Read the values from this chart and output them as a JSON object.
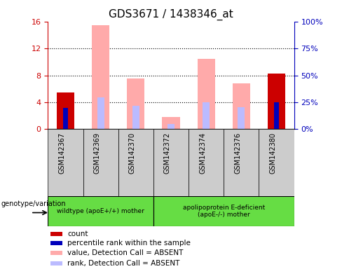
{
  "title": "GDS3671 / 1438346_at",
  "samples": [
    "GSM142367",
    "GSM142369",
    "GSM142370",
    "GSM142372",
    "GSM142374",
    "GSM142376",
    "GSM142380"
  ],
  "count_values": [
    5.5,
    null,
    null,
    null,
    null,
    null,
    8.3
  ],
  "rank_values": [
    3.2,
    null,
    null,
    null,
    null,
    null,
    4.0
  ],
  "absent_value_bars": [
    null,
    15.5,
    7.5,
    1.8,
    10.5,
    6.8,
    null
  ],
  "absent_rank_bars": [
    null,
    4.7,
    3.5,
    0.8,
    4.0,
    3.3,
    null
  ],
  "ylim": [
    0,
    16
  ],
  "y2lim": [
    0,
    100
  ],
  "yticks": [
    0,
    4,
    8,
    12,
    16
  ],
  "y2ticks": [
    0,
    25,
    50,
    75,
    100
  ],
  "color_red": "#cc0000",
  "color_blue": "#0000bb",
  "color_pink": "#ffaaaa",
  "color_lightblue": "#bbbbff",
  "color_green": "#66dd44",
  "color_gray": "#cccccc",
  "wildtype_label": "wildtype (apoE+/+) mother",
  "apoE_label": "apolipoprotein E-deficient\n(apoE-/-) mother",
  "genotype_label": "genotype/variation",
  "wildtype_samples": [
    0,
    1,
    2
  ],
  "apoE_samples": [
    3,
    4,
    5,
    6
  ]
}
